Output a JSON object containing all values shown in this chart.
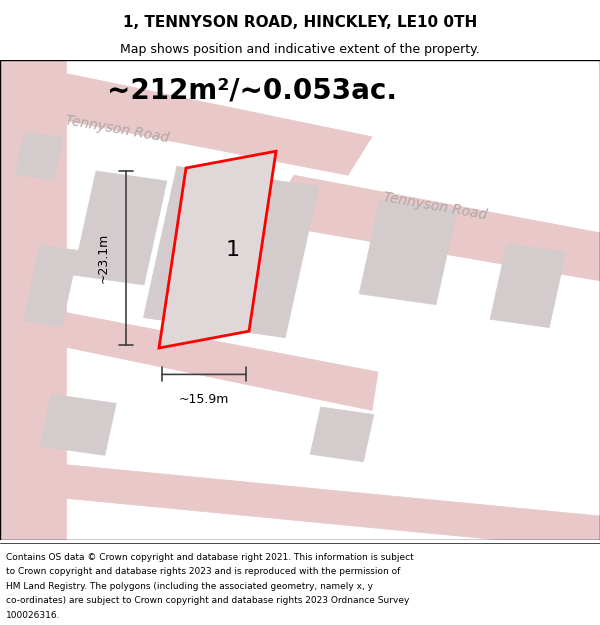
{
  "title": "1, TENNYSON ROAD, HINCKLEY, LE10 0TH",
  "subtitle": "Map shows position and indicative extent of the property.",
  "area_text": "~212m²/~0.053ac.",
  "label_number": "1",
  "dim_width": "~15.9m",
  "dim_height": "~23.1m",
  "road_label_1": "Tennyson Road",
  "road_label_2": "Tennyson Road",
  "footer_lines": [
    "Contains OS data © Crown copyright and database right 2021. This information is subject",
    "to Crown copyright and database rights 2023 and is reproduced with the permission of",
    "HM Land Registry. The polygons (including the associated geometry, namely x, y",
    "co-ordinates) are subject to Crown copyright and database rights 2023 Ordnance Survey",
    "100026316."
  ],
  "map_bg": "#f2eded",
  "road_color": "#e8c8c8",
  "building_color": "#d4cccc",
  "plot_outline_color": "#ff0000",
  "plot_fill_color": "#e0d8d8",
  "dim_line_color": "#404040",
  "title_fontsize": 11,
  "subtitle_fontsize": 9,
  "area_fontsize": 20,
  "road_label_fontsize": 10,
  "dim_fontsize": 9,
  "label_fontsize": 16,
  "footer_fontsize": 6.5
}
